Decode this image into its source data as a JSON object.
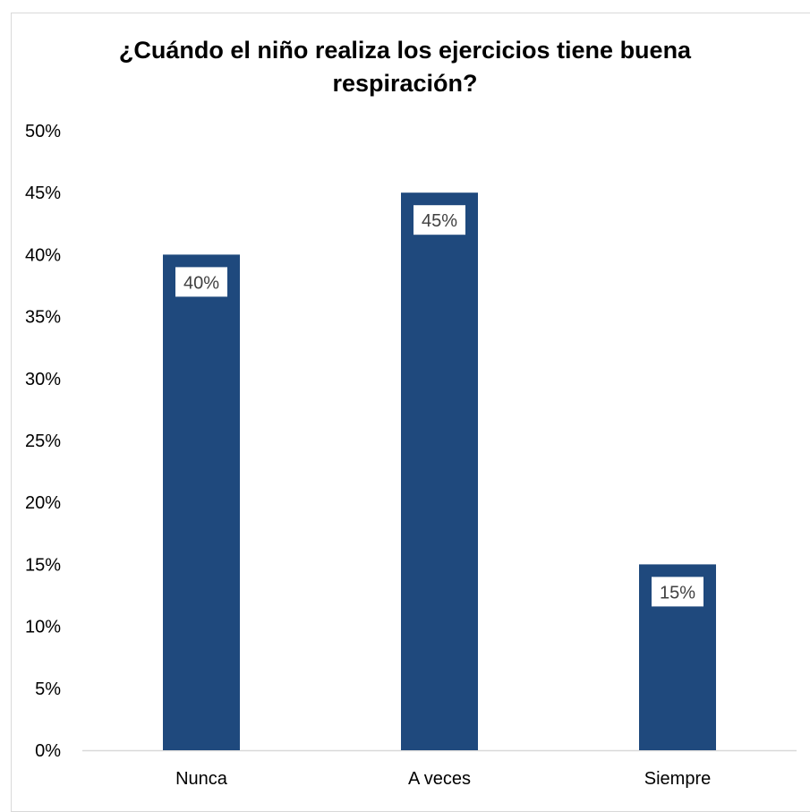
{
  "chart_data": {
    "type": "bar",
    "title_lines": [
      "¿Cuándo el niño realiza los ejercicios tiene buena",
      "respiración?"
    ],
    "categories": [
      "Nunca",
      "A veces",
      "Siempre"
    ],
    "values": [
      0.4,
      0.45,
      0.15
    ],
    "data_labels": [
      "40%",
      "45%",
      "15%"
    ],
    "ylim": [
      0,
      0.5
    ],
    "y_ticks": [
      0,
      0.05,
      0.1,
      0.15,
      0.2,
      0.25,
      0.3,
      0.35,
      0.4,
      0.45,
      0.5
    ],
    "y_tick_labels": [
      "0%",
      "5%",
      "10%",
      "15%",
      "20%",
      "25%",
      "30%",
      "35%",
      "40%",
      "45%",
      "50%"
    ],
    "xlabel": "",
    "ylabel": "",
    "grid": false,
    "legend": "none",
    "colors": {
      "bar": "#1f497d",
      "label_box": "#ffffff",
      "label_text": "#404040",
      "axis_text": "#000000",
      "axis_line": "#d9d9d9"
    }
  }
}
